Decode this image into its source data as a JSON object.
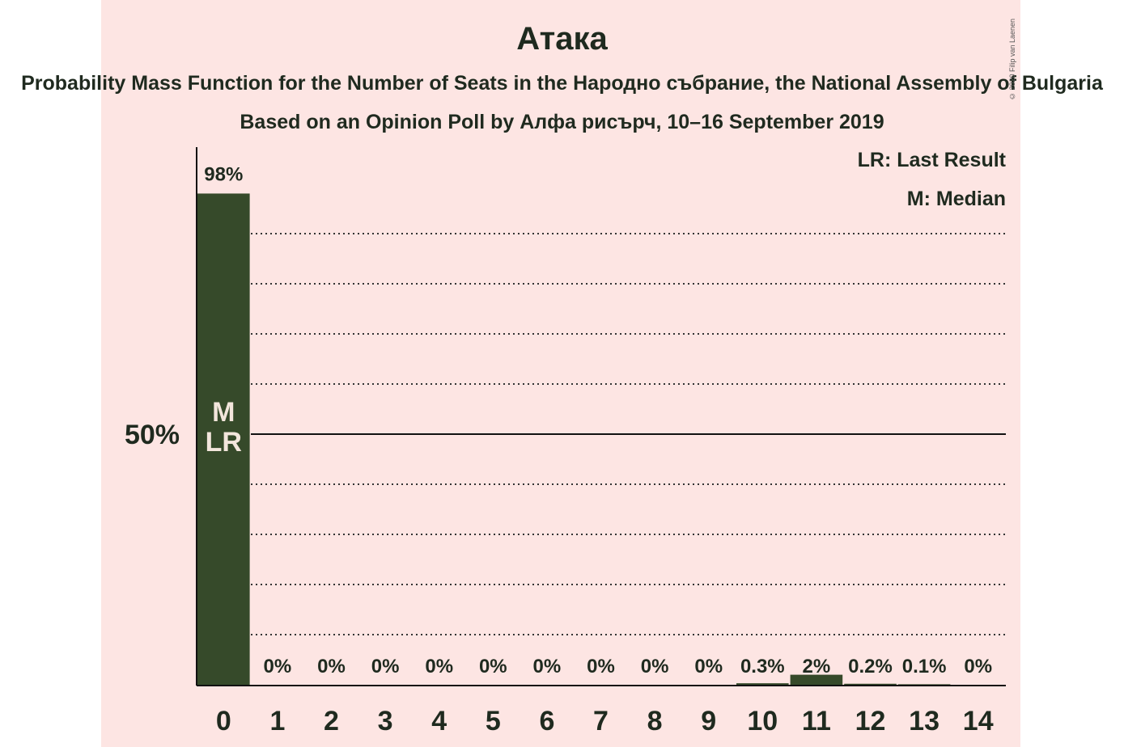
{
  "header": {
    "title": "Атака",
    "subtitle": "Probability Mass Function for the Number of Seats in the Народно събрание, the National Assembly of Bulgaria",
    "source": "Based on an Opinion Poll by Алфа рисърч, 10–16 September 2019",
    "copyright": "© 2020 Filip van Laenen"
  },
  "legend": {
    "last_result": "LR: Last Result",
    "median": "M: Median"
  },
  "colors": {
    "background": "#fde5e3",
    "bar": "#364a2a",
    "text": "#1f2a1f"
  },
  "chart_data": {
    "type": "bar",
    "categories": [
      "0",
      "1",
      "2",
      "3",
      "4",
      "5",
      "6",
      "7",
      "8",
      "9",
      "10",
      "11",
      "12",
      "13",
      "14"
    ],
    "values": [
      98,
      0,
      0,
      0,
      0,
      0,
      0,
      0,
      0,
      0,
      0.3,
      2,
      0.2,
      0.1,
      0
    ],
    "value_labels": [
      "98%",
      "0%",
      "0%",
      "0%",
      "0%",
      "0%",
      "0%",
      "0%",
      "0%",
      "0%",
      "0.3%",
      "2%",
      "0.2%",
      "0.1%",
      "0%"
    ],
    "ylim": [
      0,
      100
    ],
    "y_tick_label": "50%",
    "y_tick_value": 50,
    "gridlines": [
      10,
      20,
      30,
      40,
      60,
      70,
      80,
      90
    ],
    "median_label": "M",
    "last_result_label": "LR",
    "median_seats": 0,
    "last_result_seats": 0
  }
}
